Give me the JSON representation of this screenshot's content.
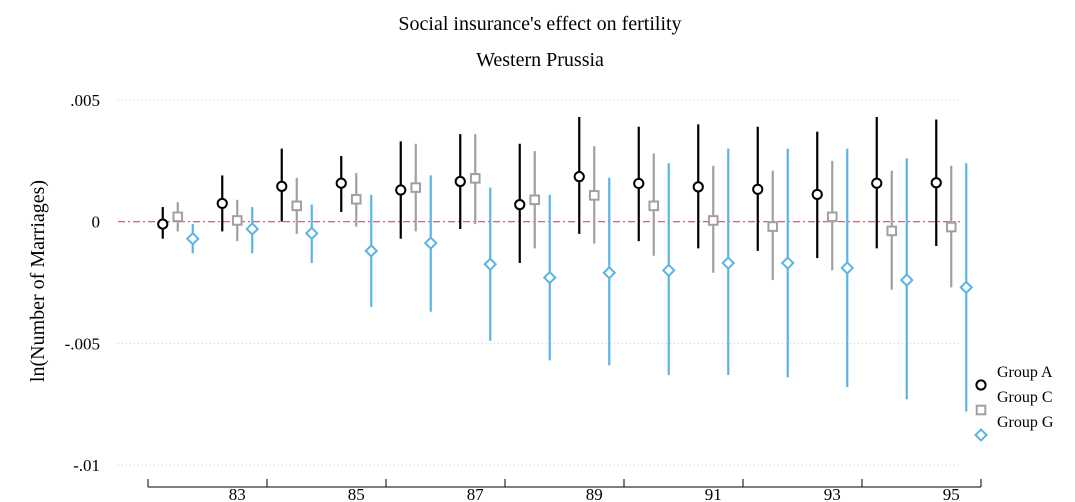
{
  "chart_data": {
    "type": "scatter",
    "title": "Social insurance's effect on fertility",
    "subtitle": "Western Prussia",
    "ylabel": "ln(Number of Marriages)",
    "xlabel": "",
    "ylim": [
      -0.01,
      0.005
    ],
    "yticks": [
      0.005,
      0,
      -0.005,
      -0.01
    ],
    "ytick_labels": [
      ".005",
      "0",
      "-.005",
      "-.01"
    ],
    "reference_line": 0,
    "reference_line_color": "#c0507a",
    "categories": [
      82,
      83,
      84,
      85,
      86,
      87,
      88,
      89,
      90,
      91,
      92,
      93,
      94,
      95
    ],
    "xtick_labels": [
      "83",
      "85",
      "87",
      "89",
      "91",
      "93",
      "95"
    ],
    "grid": true,
    "legend_position": "right",
    "series": [
      {
        "name": "Group A",
        "color": "#000000",
        "marker": "circle",
        "values": [
          -0.0001,
          0.00075,
          0.00145,
          0.00158,
          0.0013,
          0.00165,
          0.0007,
          0.00185,
          0.00157,
          0.00143,
          0.00133,
          0.00112,
          0.00158,
          0.0016
        ],
        "lower": [
          -0.0007,
          -0.0004,
          0.0,
          0.0004,
          -0.0007,
          -0.0003,
          -0.0017,
          -0.0005,
          -0.0008,
          -0.0011,
          -0.0012,
          -0.0015,
          -0.0011,
          -0.001
        ],
        "upper": [
          0.0006,
          0.0019,
          0.003,
          0.0027,
          0.0033,
          0.0036,
          0.0032,
          0.0043,
          0.0039,
          0.004,
          0.0039,
          0.0037,
          0.0043,
          0.0042
        ]
      },
      {
        "name": "Group C",
        "color": "#a0a0a0",
        "marker": "square",
        "values": [
          0.0002,
          5e-05,
          0.00065,
          0.00092,
          0.0014,
          0.00178,
          0.0009,
          0.00108,
          0.00065,
          5e-05,
          -0.0002,
          0.0002,
          -0.00038,
          -0.00022
        ],
        "lower": [
          -0.0004,
          -0.0008,
          -0.0005,
          -0.0002,
          -0.0004,
          -0.0001,
          -0.0011,
          -0.0009,
          -0.0014,
          -0.0021,
          -0.0024,
          -0.002,
          -0.0028,
          -0.0027
        ],
        "upper": [
          0.0008,
          0.0009,
          0.0018,
          0.002,
          0.0032,
          0.0036,
          0.0029,
          0.0031,
          0.0028,
          0.0023,
          0.0021,
          0.0025,
          0.0021,
          0.0023
        ]
      },
      {
        "name": "Group G",
        "color": "#5ab4e5",
        "marker": "diamond",
        "values": [
          -0.0007,
          -0.0003,
          -0.00048,
          -0.0012,
          -0.00088,
          -0.00175,
          -0.0023,
          -0.0021,
          -0.002,
          -0.0017,
          -0.0017,
          -0.0019,
          -0.0024,
          -0.0027
        ],
        "lower": [
          -0.0013,
          -0.0013,
          -0.0017,
          -0.0035,
          -0.0037,
          -0.0049,
          -0.0057,
          -0.0059,
          -0.0063,
          -0.0063,
          -0.0064,
          -0.0068,
          -0.0073,
          -0.0078
        ],
        "upper": [
          -0.0001,
          0.0006,
          0.0007,
          0.0011,
          0.0019,
          0.0014,
          0.0011,
          0.0018,
          0.0024,
          0.003,
          0.003,
          0.003,
          0.0026,
          0.0024
        ]
      }
    ]
  }
}
